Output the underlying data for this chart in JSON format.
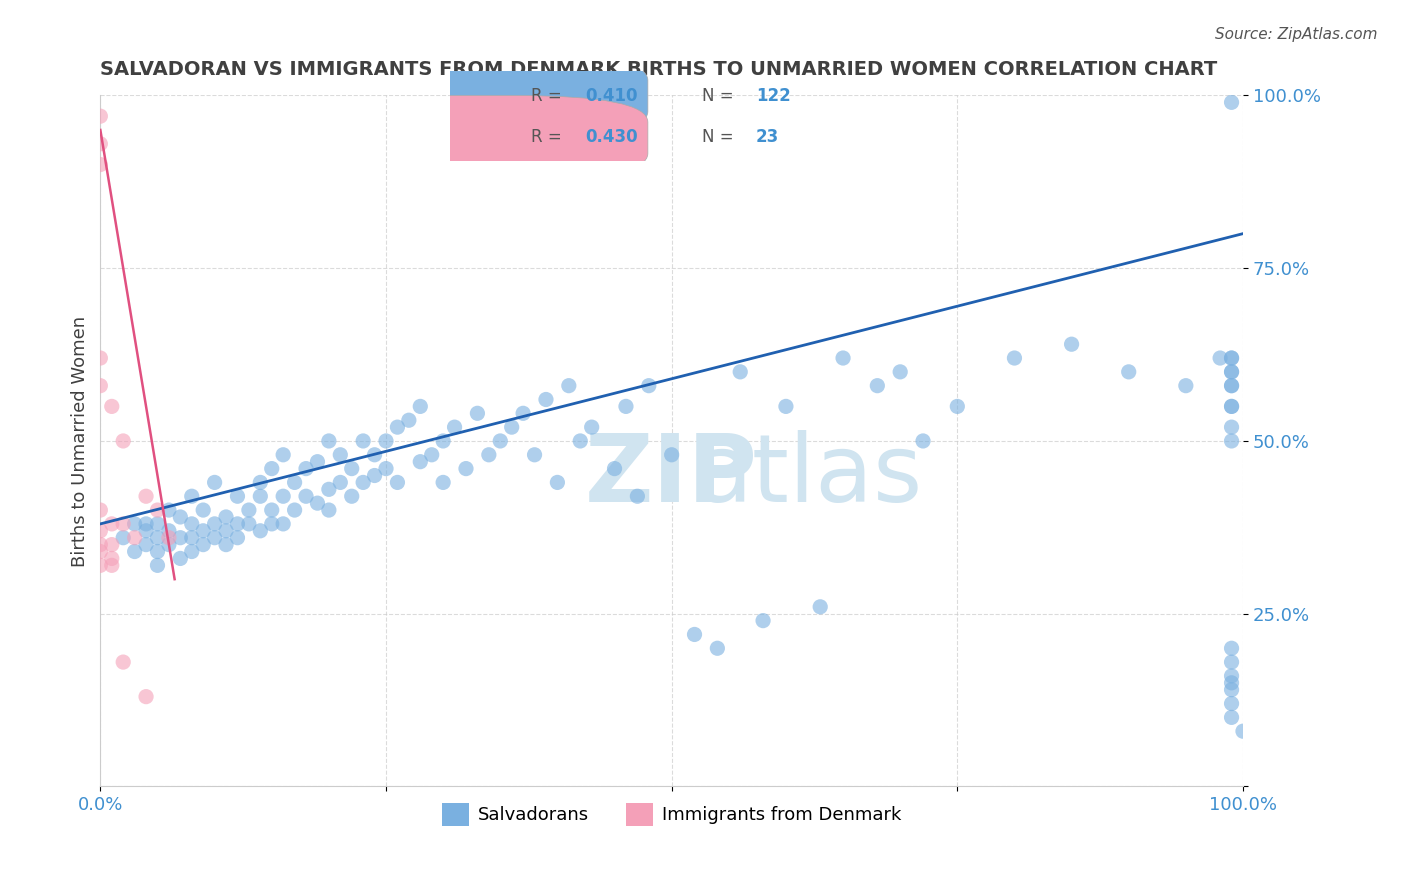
{
  "title": "SALVADORAN VS IMMIGRANTS FROM DENMARK BIRTHS TO UNMARRIED WOMEN CORRELATION CHART",
  "source": "Source: ZipAtlas.com",
  "xlabel": "",
  "ylabel": "Births to Unmarried Women",
  "legend_entries": [
    "Salvadorans",
    "Immigrants from Denmark"
  ],
  "R_salvadoran": 0.41,
  "N_salvadoran": 122,
  "R_denmark": 0.43,
  "N_denmark": 23,
  "blue_color": "#7ab0e0",
  "pink_color": "#f4a0b8",
  "blue_line_color": "#2060b0",
  "pink_line_color": "#e05080",
  "axis_tick_color": "#4090d0",
  "title_color": "#404040",
  "watermark_color": "#d0e4f0",
  "background_color": "#ffffff",
  "grid_color": "#cccccc",
  "xlim": [
    0,
    1
  ],
  "ylim": [
    0,
    1
  ],
  "xticks": [
    0,
    0.25,
    0.5,
    0.75,
    1.0
  ],
  "yticks": [
    0,
    0.25,
    0.5,
    0.75,
    1.0
  ],
  "xtick_labels": [
    "0.0%",
    "",
    "",
    "",
    "100.0%"
  ],
  "ytick_labels": [
    "",
    "25.0%",
    "50.0%",
    "75.0%",
    "100.0%"
  ],
  "blue_scatter_x": [
    0.02,
    0.03,
    0.03,
    0.04,
    0.04,
    0.04,
    0.05,
    0.05,
    0.05,
    0.05,
    0.06,
    0.06,
    0.06,
    0.07,
    0.07,
    0.07,
    0.08,
    0.08,
    0.08,
    0.08,
    0.09,
    0.09,
    0.09,
    0.1,
    0.1,
    0.1,
    0.11,
    0.11,
    0.11,
    0.12,
    0.12,
    0.12,
    0.13,
    0.13,
    0.14,
    0.14,
    0.14,
    0.15,
    0.15,
    0.15,
    0.16,
    0.16,
    0.16,
    0.17,
    0.17,
    0.18,
    0.18,
    0.19,
    0.19,
    0.2,
    0.2,
    0.2,
    0.21,
    0.21,
    0.22,
    0.22,
    0.23,
    0.23,
    0.24,
    0.24,
    0.25,
    0.25,
    0.26,
    0.26,
    0.27,
    0.28,
    0.28,
    0.29,
    0.3,
    0.3,
    0.31,
    0.32,
    0.33,
    0.34,
    0.35,
    0.36,
    0.37,
    0.38,
    0.39,
    0.4,
    0.41,
    0.42,
    0.43,
    0.45,
    0.46,
    0.47,
    0.48,
    0.5,
    0.52,
    0.54,
    0.56,
    0.58,
    0.6,
    0.63,
    0.65,
    0.68,
    0.7,
    0.72,
    0.75,
    0.8,
    0.85,
    0.9,
    0.95,
    0.98,
    0.99,
    0.99,
    0.99,
    0.99,
    0.99,
    0.99,
    0.99,
    0.99,
    0.99,
    0.99,
    0.99,
    0.99,
    0.99,
    0.99,
    0.99,
    0.99,
    0.99,
    0.99,
    1.0
  ],
  "blue_scatter_y": [
    0.36,
    0.38,
    0.34,
    0.37,
    0.35,
    0.38,
    0.36,
    0.34,
    0.38,
    0.32,
    0.37,
    0.35,
    0.4,
    0.36,
    0.33,
    0.39,
    0.38,
    0.36,
    0.34,
    0.42,
    0.37,
    0.35,
    0.4,
    0.38,
    0.36,
    0.44,
    0.37,
    0.39,
    0.35,
    0.38,
    0.42,
    0.36,
    0.4,
    0.38,
    0.42,
    0.37,
    0.44,
    0.4,
    0.38,
    0.46,
    0.42,
    0.38,
    0.48,
    0.4,
    0.44,
    0.42,
    0.46,
    0.41,
    0.47,
    0.43,
    0.4,
    0.5,
    0.44,
    0.48,
    0.46,
    0.42,
    0.5,
    0.44,
    0.48,
    0.45,
    0.5,
    0.46,
    0.52,
    0.44,
    0.53,
    0.47,
    0.55,
    0.48,
    0.5,
    0.44,
    0.52,
    0.46,
    0.54,
    0.48,
    0.5,
    0.52,
    0.54,
    0.48,
    0.56,
    0.44,
    0.58,
    0.5,
    0.52,
    0.46,
    0.55,
    0.42,
    0.58,
    0.48,
    0.22,
    0.2,
    0.6,
    0.24,
    0.55,
    0.26,
    0.62,
    0.58,
    0.6,
    0.5,
    0.55,
    0.62,
    0.64,
    0.6,
    0.58,
    0.62,
    0.15,
    0.18,
    0.12,
    0.2,
    0.14,
    0.1,
    0.16,
    0.6,
    0.55,
    0.58,
    0.52,
    0.6,
    0.62,
    0.55,
    0.58,
    0.5,
    0.62,
    0.99,
    0.08
  ],
  "pink_scatter_x": [
    0.0,
    0.0,
    0.0,
    0.0,
    0.0,
    0.0,
    0.0,
    0.0,
    0.0,
    0.0,
    0.01,
    0.01,
    0.01,
    0.01,
    0.01,
    0.02,
    0.02,
    0.02,
    0.03,
    0.04,
    0.04,
    0.05,
    0.06
  ],
  "pink_scatter_y": [
    0.97,
    0.93,
    0.9,
    0.62,
    0.58,
    0.4,
    0.37,
    0.35,
    0.34,
    0.32,
    0.55,
    0.38,
    0.35,
    0.33,
    0.32,
    0.5,
    0.38,
    0.18,
    0.36,
    0.42,
    0.13,
    0.4,
    0.36
  ],
  "blue_trend_x": [
    0,
    1.0
  ],
  "blue_trend_y": [
    0.38,
    0.8
  ],
  "pink_trend_x": [
    0.0,
    0.065
  ],
  "pink_trend_y": [
    0.95,
    0.3
  ]
}
